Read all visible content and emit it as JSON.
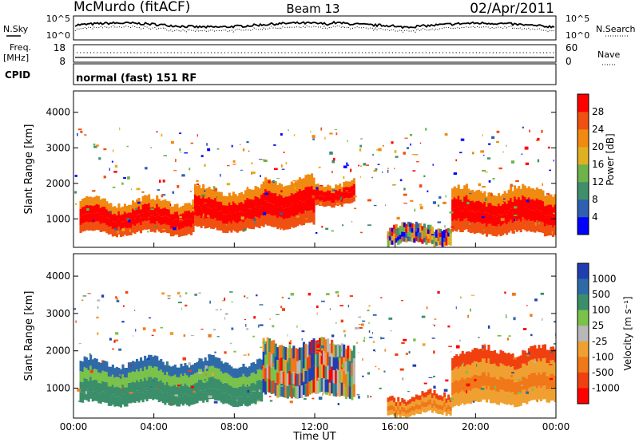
{
  "header": {
    "station": "McMurdo (fitACF)",
    "beam": "Beam 13",
    "date": "02/Apr/2011"
  },
  "noise_panel": {
    "left_label": "N.Sky",
    "right_label": "N.Search",
    "left_ticks": [
      "10^5",
      "10^0"
    ],
    "right_ticks": [
      "10^5",
      "10^0"
    ]
  },
  "freq_panel": {
    "left_label_1": "Freq.",
    "left_label_2": "[MHz]",
    "left_ticks": [
      "18",
      "8"
    ],
    "right_label": "Nave",
    "right_ticks": [
      "60",
      "0"
    ]
  },
  "cpid_panel": {
    "label": "CPID",
    "text": "normal (fast) 151 RF"
  },
  "range_axis": {
    "label": "Slant Range [km]",
    "ticks": [
      "1000",
      "2000",
      "3000",
      "4000"
    ]
  },
  "time_axis": {
    "label": "Time UT",
    "ticks": [
      "00:00",
      "04:00",
      "08:00",
      "12:00",
      "16:00",
      "20:00",
      "00:00"
    ]
  },
  "power_scale": {
    "label": "Power [dB]",
    "ticks": [
      "4",
      "8",
      "12",
      "16",
      "20",
      "24",
      "28"
    ],
    "colors": [
      "#0000ff",
      "#2e5fb0",
      "#3f8f6a",
      "#6db24a",
      "#e0b020",
      "#f08a10",
      "#f05010",
      "#ff0000"
    ]
  },
  "velocity_scale": {
    "label": "Velocity [m s⁻¹]",
    "ticks": [
      "1000",
      "500",
      "100",
      "25",
      "-25",
      "-100",
      "-500",
      "-1000"
    ],
    "colors": [
      "#1f3fb0",
      "#2f6aa8",
      "#3a8f6a",
      "#7ac24a",
      "#b8b8b8",
      "#f0a030",
      "#f07818",
      "#f04010",
      "#ff0000"
    ]
  },
  "chart_data": {
    "type": "heatmap",
    "x_range_hours_ut": [
      0,
      24
    ],
    "y_range_km": [
      200,
      4600
    ],
    "panels": [
      "power",
      "velocity"
    ],
    "power_regions": [
      {
        "t": [
          0.3,
          6.0
        ],
        "range_km": [
          600,
          1500
        ],
        "level": "high"
      },
      {
        "t": [
          6.0,
          9.4
        ],
        "range_km": [
          700,
          1800
        ],
        "level": "high"
      },
      {
        "t": [
          9.4,
          12.0
        ],
        "range_km": [
          800,
          2100
        ],
        "level": "high"
      },
      {
        "t": [
          12.0,
          14.0
        ],
        "range_km": [
          1400,
          2000
        ],
        "level": "high"
      },
      {
        "t": [
          15.6,
          18.8
        ],
        "range_km": [
          300,
          800
        ],
        "level": "mixed"
      },
      {
        "t": [
          18.8,
          24.0
        ],
        "range_km": [
          600,
          1800
        ],
        "level": "high"
      }
    ],
    "velocity_regions": [
      {
        "t": [
          0.3,
          9.4
        ],
        "range_km": [
          600,
          1700
        ],
        "sign": "positive"
      },
      {
        "t": [
          9.4,
          14.0
        ],
        "range_km": [
          800,
          2200
        ],
        "sign": "mixed"
      },
      {
        "t": [
          15.6,
          18.8
        ],
        "range_km": [
          300,
          800
        ],
        "sign": "negative"
      },
      {
        "t": [
          18.8,
          24.0
        ],
        "range_km": [
          600,
          2000
        ],
        "sign": "negative"
      }
    ]
  }
}
